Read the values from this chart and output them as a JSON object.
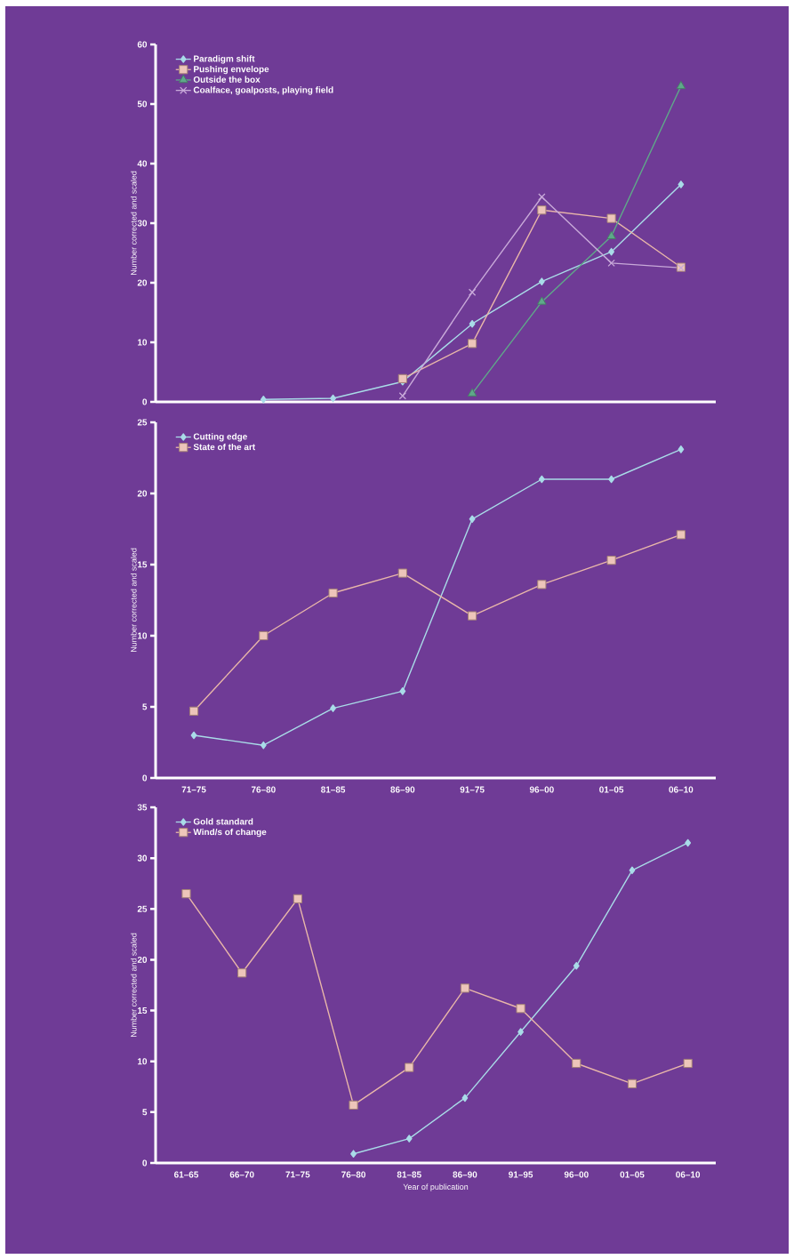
{
  "chart_data": [
    {
      "type": "line",
      "ylabel": "Number corrected and scaled",
      "categories": [
        null,
        null,
        null,
        null,
        null,
        null,
        null,
        null
      ],
      "ylim": [
        0,
        60
      ],
      "yticks": [
        0,
        10,
        20,
        30,
        40,
        50,
        60
      ],
      "legend": "top left",
      "grid": false,
      "series": [
        {
          "name": "Paradigm shift",
          "color": "#a9dce8",
          "marker": "diamond",
          "values": [
            null,
            0.4,
            0.6,
            3.4,
            13.1,
            20.2,
            25.2,
            36.5
          ]
        },
        {
          "name": "Pushing envelope",
          "color": "#e9b7a9",
          "marker": "square",
          "values": [
            null,
            null,
            null,
            3.9,
            9.8,
            32.2,
            30.8,
            22.6
          ]
        },
        {
          "name": "Outside the box",
          "color": "#5fa98a",
          "marker": "triangle",
          "values": [
            null,
            null,
            null,
            null,
            1.4,
            16.8,
            27.8,
            53.0
          ]
        },
        {
          "name": "Coalface, goalposts, playing field",
          "color": "#c8a9d9",
          "marker": "cross",
          "values": [
            null,
            null,
            null,
            1.0,
            18.4,
            34.4,
            23.3,
            22.5
          ]
        }
      ]
    },
    {
      "type": "line",
      "ylabel": "Number corrected and scaled",
      "categories": [
        "71–75",
        "76–80",
        "81–85",
        "86–90",
        "91–75",
        "96–00",
        "01–05",
        "06–10"
      ],
      "ylim": [
        0,
        25
      ],
      "yticks": [
        0,
        5,
        10,
        15,
        20,
        25
      ],
      "legend": "top left",
      "grid": false,
      "series": [
        {
          "name": "Cutting edge",
          "color": "#a9dce8",
          "marker": "diamond",
          "values": [
            3.0,
            2.3,
            4.9,
            6.1,
            18.2,
            21.0,
            21.0,
            23.1
          ]
        },
        {
          "name": "State of the art",
          "color": "#e9b7a9",
          "marker": "square",
          "values": [
            4.7,
            10.0,
            13.0,
            14.4,
            11.4,
            13.6,
            15.3,
            17.1
          ]
        }
      ]
    },
    {
      "type": "line",
      "xlabel": "Year of publication",
      "ylabel": "Number corrected and scaled",
      "categories": [
        "61–65",
        "66–70",
        "71–75",
        "76–80",
        "81–85",
        "86–90",
        "91–95",
        "96–00",
        "01–05",
        "06–10"
      ],
      "ylim": [
        0,
        35
      ],
      "yticks": [
        0,
        5,
        10,
        15,
        20,
        25,
        30,
        35
      ],
      "legend": "top left",
      "grid": false,
      "series": [
        {
          "name": "Gold standard",
          "color": "#a9dce8",
          "marker": "diamond",
          "values": [
            null,
            null,
            null,
            0.9,
            2.4,
            6.4,
            12.9,
            19.4,
            28.8,
            31.5
          ]
        },
        {
          "name": "Wind/s of change",
          "color": "#e9b7a9",
          "marker": "square",
          "values": [
            26.5,
            18.7,
            26.0,
            5.7,
            9.4,
            17.2,
            15.2,
            9.8,
            7.8,
            9.8
          ]
        }
      ]
    }
  ]
}
